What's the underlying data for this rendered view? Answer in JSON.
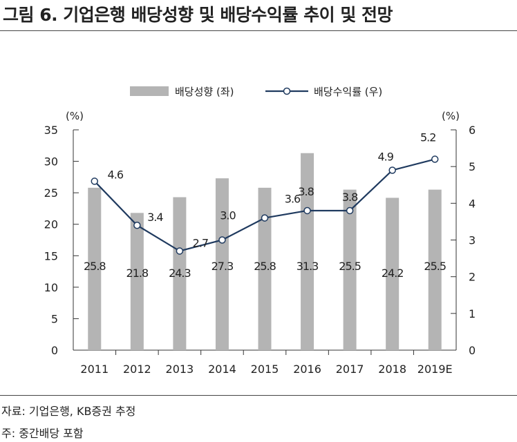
{
  "title": "그림 6. 기업은행 배당성향 및 배당수익률 추이 및 전망",
  "source": "자료: 기업은행, KB증권 추정",
  "footnote": "주: 중간배당 포함",
  "colors": {
    "bar": "#b4b4b4",
    "line": "#1f3a5f",
    "marker_fill": "#ffffff",
    "axis": "#333333"
  },
  "chart_data": {
    "type": "bar",
    "categories": [
      "2011",
      "2012",
      "2013",
      "2014",
      "2015",
      "2016",
      "2017",
      "2018",
      "2019E"
    ],
    "series": [
      {
        "name": "배당성향 (좌)",
        "type": "bar",
        "axis": "left",
        "values": [
          25.8,
          21.8,
          24.3,
          27.3,
          25.8,
          31.3,
          25.5,
          24.2,
          25.5
        ],
        "labels": [
          "25.8",
          "21.8",
          "24.3",
          "27.3",
          "25.8",
          "31.3",
          "25.5",
          "24.2",
          "25.5"
        ]
      },
      {
        "name": "배당수익률 (우)",
        "type": "line",
        "axis": "right",
        "values": [
          4.6,
          3.4,
          2.7,
          3.0,
          3.6,
          3.8,
          3.8,
          4.9,
          5.2
        ],
        "labels": [
          "4.6",
          "3.4",
          "2.7",
          "3.0",
          "3.6",
          "3.8",
          "3.8",
          "4.9",
          "5.2"
        ]
      }
    ],
    "y_left": {
      "unit": "(%)",
      "ylim": [
        0,
        35
      ],
      "ticks": [
        "0",
        "5",
        "10",
        "15",
        "20",
        "25",
        "30",
        "35"
      ]
    },
    "y_right": {
      "unit": "(%)",
      "ylim": [
        0,
        6
      ],
      "ticks": [
        "0",
        "1",
        "2",
        "3",
        "4",
        "5",
        "6"
      ]
    },
    "grid": false,
    "legend": "top-center"
  }
}
